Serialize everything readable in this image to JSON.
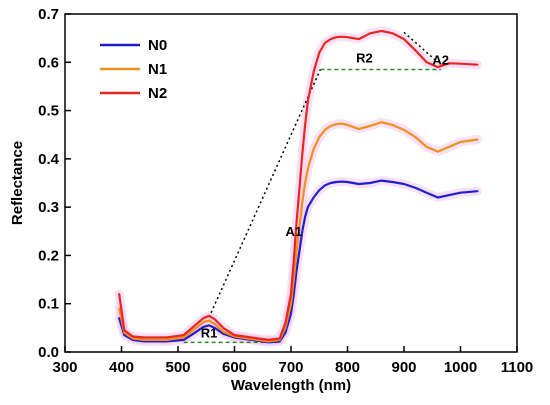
{
  "chart_data": {
    "type": "line",
    "xlabel": "Wavelength (nm)",
    "ylabel": "Reflectance",
    "xlim": [
      300,
      1100
    ],
    "ylim": [
      0.0,
      0.7
    ],
    "xticks": [
      "300",
      "400",
      "500",
      "600",
      "700",
      "800",
      "900",
      "1000",
      "1100"
    ],
    "yticks": [
      "0.0",
      "0.1",
      "0.2",
      "0.3",
      "0.4",
      "0.5",
      "0.6",
      "0.7"
    ],
    "legend_position": "top-left",
    "grid": false,
    "series": [
      {
        "name": "N0",
        "color": "#1f1fd0",
        "x": [
          396,
          405,
          420,
          440,
          480,
          510,
          530,
          545,
          555,
          565,
          580,
          600,
          630,
          660,
          680,
          690,
          700,
          705,
          710,
          715,
          720,
          725,
          730,
          740,
          750,
          760,
          770,
          780,
          790,
          800,
          820,
          840,
          860,
          880,
          900,
          920,
          940,
          960,
          980,
          1000,
          1030
        ],
        "y": [
          0.07,
          0.035,
          0.025,
          0.022,
          0.022,
          0.025,
          0.04,
          0.052,
          0.055,
          0.05,
          0.038,
          0.03,
          0.025,
          0.02,
          0.022,
          0.04,
          0.08,
          0.12,
          0.17,
          0.21,
          0.25,
          0.28,
          0.3,
          0.32,
          0.335,
          0.345,
          0.35,
          0.352,
          0.353,
          0.352,
          0.348,
          0.35,
          0.355,
          0.352,
          0.348,
          0.34,
          0.33,
          0.32,
          0.325,
          0.33,
          0.333
        ]
      },
      {
        "name": "N1",
        "color": "#f0901c",
        "x": [
          396,
          405,
          420,
          440,
          480,
          510,
          530,
          545,
          555,
          565,
          580,
          600,
          630,
          660,
          680,
          690,
          700,
          705,
          710,
          715,
          720,
          725,
          730,
          740,
          750,
          760,
          770,
          780,
          790,
          800,
          820,
          840,
          860,
          880,
          900,
          920,
          940,
          960,
          980,
          1000,
          1030
        ],
        "y": [
          0.09,
          0.04,
          0.028,
          0.025,
          0.025,
          0.03,
          0.048,
          0.062,
          0.065,
          0.058,
          0.042,
          0.032,
          0.027,
          0.022,
          0.025,
          0.05,
          0.1,
          0.15,
          0.21,
          0.26,
          0.31,
          0.35,
          0.38,
          0.42,
          0.445,
          0.46,
          0.468,
          0.472,
          0.473,
          0.47,
          0.462,
          0.468,
          0.476,
          0.47,
          0.46,
          0.445,
          0.425,
          0.415,
          0.425,
          0.435,
          0.44
        ]
      },
      {
        "name": "N2",
        "color": "#e8261f",
        "x": [
          396,
          405,
          420,
          440,
          480,
          510,
          530,
          545,
          555,
          565,
          580,
          600,
          630,
          660,
          680,
          690,
          700,
          705,
          710,
          715,
          720,
          725,
          730,
          740,
          750,
          760,
          770,
          780,
          790,
          800,
          820,
          840,
          860,
          880,
          900,
          920,
          940,
          960,
          980,
          1000,
          1030
        ],
        "y": [
          0.12,
          0.045,
          0.032,
          0.03,
          0.03,
          0.035,
          0.055,
          0.07,
          0.075,
          0.068,
          0.05,
          0.035,
          0.03,
          0.025,
          0.028,
          0.06,
          0.12,
          0.19,
          0.27,
          0.34,
          0.41,
          0.47,
          0.52,
          0.58,
          0.62,
          0.64,
          0.648,
          0.652,
          0.653,
          0.652,
          0.648,
          0.66,
          0.665,
          0.66,
          0.648,
          0.625,
          0.6,
          0.59,
          0.598,
          0.597,
          0.595
        ]
      }
    ],
    "annotations": [
      {
        "label": "R1",
        "x": 555,
        "y": 0.03
      },
      {
        "label": "A1",
        "x": 705,
        "y": 0.24
      },
      {
        "label": "R2",
        "x": 830,
        "y": 0.6
      },
      {
        "label": "A2",
        "x": 965,
        "y": 0.595
      }
    ],
    "reference_lines": [
      {
        "style": "dotted",
        "color": "#000000",
        "points": [
          [
            555,
            0.072
          ],
          [
            752,
            0.585
          ]
        ]
      },
      {
        "style": "dotted",
        "color": "#000000",
        "points": [
          [
            900,
            0.662
          ],
          [
            960,
            0.6
          ]
        ]
      },
      {
        "style": "dashed",
        "color": "#2e8b2e",
        "points": [
          [
            510,
            0.02
          ],
          [
            680,
            0.02
          ]
        ]
      },
      {
        "style": "dashed",
        "color": "#2e8b2e",
        "points": [
          [
            752,
            0.585
          ],
          [
            965,
            0.585
          ]
        ]
      }
    ]
  }
}
